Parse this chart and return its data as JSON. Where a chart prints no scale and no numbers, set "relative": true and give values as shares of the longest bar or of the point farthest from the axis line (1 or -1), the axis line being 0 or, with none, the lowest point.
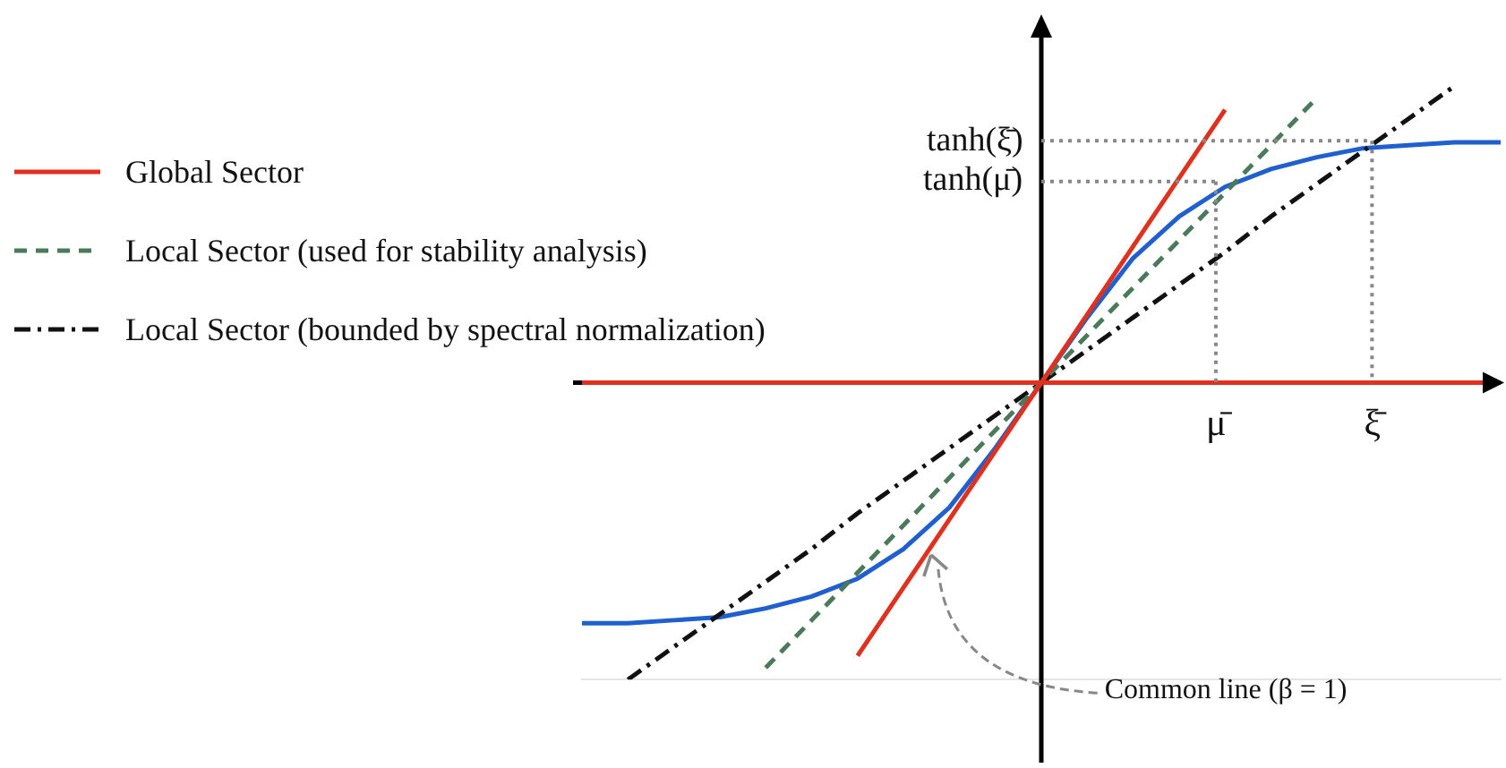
{
  "chart_data": {
    "type": "line",
    "relative": true,
    "legend": "top left",
    "marker": "none",
    "categories": [
      null,
      null,
      null,
      null,
      null,
      null,
      null,
      null,
      null,
      null,
      null,
      null,
      null,
      null,
      null,
      null,
      null,
      null,
      null,
      null,
      null
    ],
    "series": [
      {
        "color": "#e0301e",
        "line_style": "solid",
        "values": [
          null,
          null,
          null,
          null,
          null,
          null,
          -0.92,
          -0.69,
          -0.46,
          -0.23,
          0,
          0.23,
          0.46,
          0.69,
          0.92,
          null,
          null,
          null,
          null,
          null,
          null
        ]
      },
      {
        "name": "Global Sector",
        "color": "#e0301e",
        "line_style": "solid",
        "values": [
          0,
          0,
          0,
          0,
          0,
          0,
          0,
          0,
          0,
          0,
          0,
          0,
          0,
          0,
          0,
          0,
          0,
          0,
          0,
          0,
          0
        ]
      },
      {
        "name": "Local Sector (used for stability analysis)",
        "color": "#4a7a5a",
        "line_style": "dashed",
        "values": [
          null,
          null,
          null,
          null,
          -0.96,
          -0.8,
          -0.64,
          -0.48,
          -0.32,
          -0.16,
          0,
          0.16,
          0.32,
          0.48,
          0.64,
          0.8,
          0.96,
          null,
          null,
          null,
          null
        ]
      },
      {
        "name": "Local Sector (bounded by spectral normalization)",
        "color": "#111111",
        "line_style": "dashdot",
        "values": [
          null,
          -1.0,
          -0.89,
          -0.78,
          -0.67,
          -0.56,
          -0.44,
          -0.33,
          -0.22,
          -0.11,
          0,
          0.11,
          0.22,
          0.33,
          0.44,
          0.56,
          0.67,
          0.78,
          0.89,
          1.0,
          null
        ]
      },
      {
        "color": "#1f5fcf",
        "line_style": "solid",
        "values": [
          -0.81,
          -0.81,
          -0.8,
          -0.79,
          -0.76,
          -0.72,
          -0.66,
          -0.56,
          -0.42,
          -0.22,
          0,
          0.22,
          0.42,
          0.56,
          0.66,
          0.72,
          0.76,
          0.79,
          0.8,
          0.81,
          0.81
        ]
      }
    ],
    "annotations": [
      "tanh(ξ̄)",
      "tanh(μ̄)",
      "μ̄",
      "ξ̄",
      "Common line (β = 1)"
    ]
  }
}
